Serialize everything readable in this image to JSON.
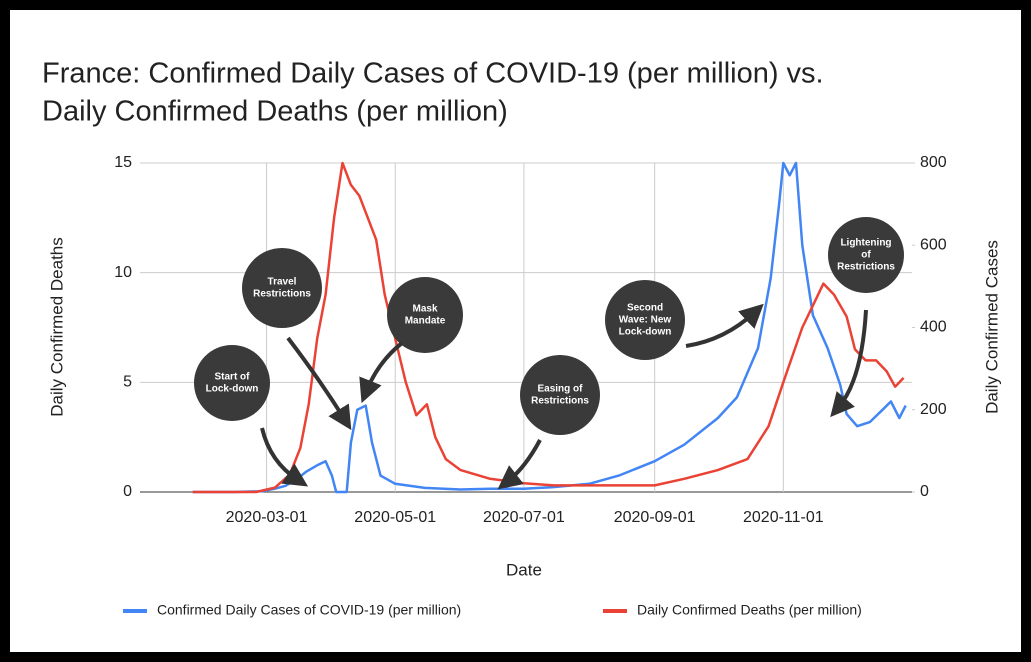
{
  "chart_data": {
    "type": "line",
    "title_lines": [
      "France: Confirmed Daily Cases of COVID-19 (per million) vs.",
      "Daily Confirmed Deaths (per million)"
    ],
    "xlabel": "Date",
    "ylabel": "Daily Confirmed Deaths",
    "y2label": "Daily Confirmed Cases",
    "xlim": [
      "2020-01-01",
      "2021-01-01"
    ],
    "xticks": [
      "2020-03-01",
      "2020-05-01",
      "2020-07-01",
      "2020-09-01",
      "2020-11-01"
    ],
    "ylim": [
      0,
      15
    ],
    "yticks": [
      0,
      5,
      10,
      15
    ],
    "y2lim": [
      0,
      800
    ],
    "y2ticks": [
      0,
      200,
      400,
      600,
      800
    ],
    "grid": true,
    "legend": "bottom",
    "series": [
      {
        "name": "Confirmed Daily Cases of COVID-19 (per million)",
        "color": "#4285f4",
        "axis": "y2",
        "x": [
          "2020-01-26",
          "2020-02-15",
          "2020-02-28",
          "2020-03-05",
          "2020-03-10",
          "2020-03-15",
          "2020-03-20",
          "2020-03-25",
          "2020-03-29",
          "2020-04-01",
          "2020-04-03",
          "2020-04-08",
          "2020-04-10",
          "2020-04-13",
          "2020-04-17",
          "2020-04-20",
          "2020-04-24",
          "2020-05-01",
          "2020-05-15",
          "2020-06-01",
          "2020-06-15",
          "2020-07-01",
          "2020-07-15",
          "2020-08-01",
          "2020-08-15",
          "2020-09-01",
          "2020-09-15",
          "2020-10-01",
          "2020-10-10",
          "2020-10-20",
          "2020-10-26",
          "2020-10-30",
          "2020-11-01",
          "2020-11-04",
          "2020-11-07",
          "2020-11-10",
          "2020-11-15",
          "2020-11-22",
          "2020-11-28",
          "2020-12-01",
          "2020-12-06",
          "2020-12-12",
          "2020-12-18",
          "2020-12-22",
          "2020-12-26",
          "2020-12-29"
        ],
        "values": [
          0,
          0,
          2,
          8,
          15,
          30,
          50,
          65,
          75,
          40,
          0,
          0,
          120,
          200,
          210,
          120,
          40,
          20,
          10,
          6,
          8,
          8,
          12,
          20,
          40,
          75,
          115,
          180,
          230,
          350,
          520,
          700,
          800,
          770,
          800,
          600,
          430,
          350,
          260,
          190,
          160,
          170,
          200,
          220,
          180,
          210
        ]
      },
      {
        "name": "Daily Confirmed Deaths (per million)",
        "color": "#ea4335",
        "axis": "y",
        "x": [
          "2020-01-26",
          "2020-02-25",
          "2020-03-05",
          "2020-03-12",
          "2020-03-17",
          "2020-03-21",
          "2020-03-25",
          "2020-03-29",
          "2020-04-02",
          "2020-04-06",
          "2020-04-10",
          "2020-04-14",
          "2020-04-18",
          "2020-04-22",
          "2020-04-26",
          "2020-05-01",
          "2020-05-06",
          "2020-05-11",
          "2020-05-16",
          "2020-05-20",
          "2020-05-25",
          "2020-06-01",
          "2020-06-15",
          "2020-07-01",
          "2020-07-15",
          "2020-08-01",
          "2020-08-15",
          "2020-09-01",
          "2020-09-15",
          "2020-10-01",
          "2020-10-15",
          "2020-10-25",
          "2020-11-01",
          "2020-11-10",
          "2020-11-15",
          "2020-11-20",
          "2020-11-25",
          "2020-12-01",
          "2020-12-05",
          "2020-12-10",
          "2020-12-15",
          "2020-12-20",
          "2020-12-24",
          "2020-12-28"
        ],
        "values": [
          0,
          0,
          0.2,
          0.8,
          2,
          4,
          7,
          9,
          12.5,
          15,
          14,
          13.5,
          12.5,
          11.5,
          9,
          7,
          5,
          3.5,
          4,
          2.5,
          1.5,
          1,
          0.6,
          0.4,
          0.3,
          0.3,
          0.3,
          0.3,
          0.6,
          1,
          1.5,
          3,
          5,
          7.5,
          8.5,
          9.5,
          9,
          8,
          6.5,
          6,
          6,
          5.5,
          4.8,
          5.2
        ]
      }
    ],
    "annotations": [
      {
        "lines": [
          "Start of",
          "Lock-down"
        ]
      },
      {
        "lines": [
          "Travel",
          "Restrictions"
        ]
      },
      {
        "lines": [
          "Mask",
          "Mandate"
        ]
      },
      {
        "lines": [
          "Easing of",
          "Restrictions"
        ]
      },
      {
        "lines": [
          "Second",
          "Wave: New",
          "Lock-down"
        ]
      },
      {
        "lines": [
          "Lightening",
          "of",
          "Restrictions"
        ]
      }
    ]
  }
}
